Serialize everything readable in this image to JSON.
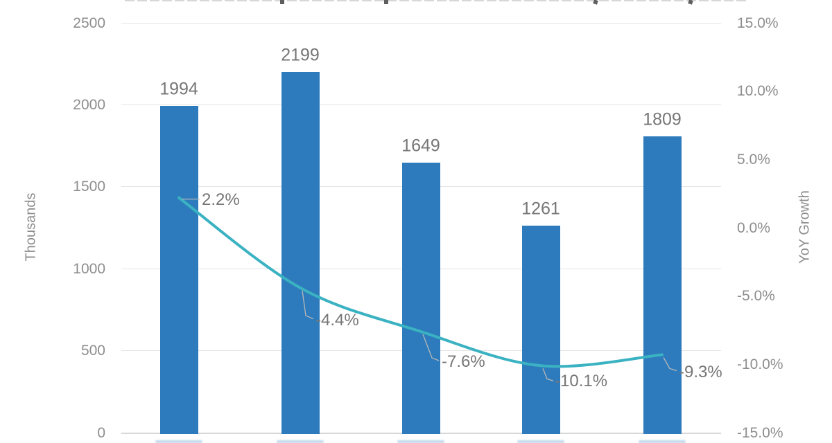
{
  "chart_data": {
    "type": "combo",
    "title_cropped_out": true,
    "legend": "none",
    "grid": true,
    "categories": [
      "",
      "",
      "",
      "",
      ""
    ],
    "series": [
      {
        "name": "volume-thousands",
        "type": "bar",
        "axis": "left",
        "color": "#2d7bbc",
        "values": [
          1994,
          2199,
          1649,
          1261,
          1809
        ],
        "data_labels": [
          "1994",
          "2199",
          "1649",
          "1261",
          "1809"
        ]
      },
      {
        "name": "yoy-growth",
        "type": "line",
        "axis": "right",
        "color": "#3ab2c2",
        "values": [
          2.2,
          -4.4,
          -7.6,
          -10.1,
          -9.3
        ],
        "data_labels": [
          "2.2%",
          "-4.4%",
          "-7.6%",
          "-10.1%",
          "-9.3%"
        ]
      }
    ],
    "left_axis": {
      "title": "Thousands",
      "min": 0,
      "max": 2500,
      "ticks": [
        "2500",
        "2000",
        "1500",
        "1000",
        "500",
        "0"
      ]
    },
    "right_axis": {
      "title": "YoY Growth",
      "min": -15,
      "max": 15,
      "ticks": [
        "15.0%",
        "10.0%",
        "5.0%",
        "0.0%",
        "-5.0%",
        "-10.0%",
        "-15.0%"
      ]
    }
  },
  "colors": {
    "bar": "#2d7bbc",
    "line": "#3ab2c2",
    "grid": "#e4e4e4",
    "axis_line": "#d8d8d8",
    "tick_text": "#8d8d8d",
    "label_text": "#767676",
    "leader_line": "#b8b8b8"
  }
}
